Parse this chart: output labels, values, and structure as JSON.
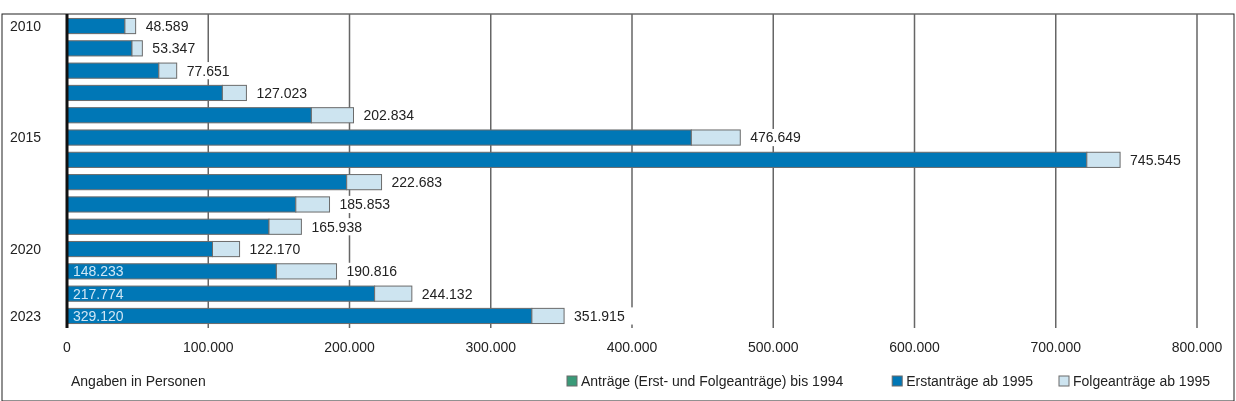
{
  "chart_data": {
    "type": "bar",
    "orientation": "horizontal",
    "stacked": true,
    "categories": [
      "2010",
      null,
      null,
      null,
      null,
      "2015",
      null,
      null,
      null,
      null,
      "2020",
      null,
      null,
      "2023"
    ],
    "series": [
      {
        "name": "Anträge (Erst- und Folgeanträge) bis 1994",
        "color": "#3a9a78",
        "values": [
          null,
          null,
          null,
          null,
          null,
          null,
          null,
          null,
          null,
          null,
          null,
          null,
          null,
          null
        ]
      },
      {
        "name": "Erstanträge ab 1995",
        "color": "#0077b6",
        "values": [
          41000,
          46000,
          65000,
          110000,
          173000,
          442000,
          722000,
          198000,
          162000,
          143000,
          103000,
          148233,
          217774,
          329120
        ],
        "value_labels": [
          null,
          null,
          null,
          null,
          null,
          null,
          null,
          null,
          null,
          null,
          null,
          "148.233",
          "217.774",
          "329.120"
        ]
      },
      {
        "name": "Folgeanträge ab 1995",
        "color": "#cde4f0",
        "values": [
          7589,
          7347,
          12651,
          17023,
          29834,
          34649,
          23545,
          24683,
          23853,
          22938,
          19170,
          42583,
          26358,
          22795
        ]
      }
    ],
    "totals": [
      "48.589",
      "53.347",
      "77.651",
      "127.023",
      "202.834",
      "476.649",
      "745.545",
      "222.683",
      "185.853",
      "165.938",
      "122.170",
      "190.816",
      "244.132",
      "351.915"
    ],
    "xlim": [
      0,
      800000
    ],
    "xticks": [
      {
        "value": 0,
        "label": "0"
      },
      {
        "value": 100000,
        "label": "100.000"
      },
      {
        "value": 200000,
        "label": "200.000"
      },
      {
        "value": 300000,
        "label": "300.000"
      },
      {
        "value": 400000,
        "label": "400.000"
      },
      {
        "value": 500000,
        "label": "500.000"
      },
      {
        "value": 600000,
        "label": "600.000"
      },
      {
        "value": 700000,
        "label": "700.000"
      },
      {
        "value": 800000,
        "label": "800.000"
      }
    ],
    "grid": "x",
    "legend": "bottom right",
    "annotations": [
      "Angaben in Personen"
    ]
  }
}
